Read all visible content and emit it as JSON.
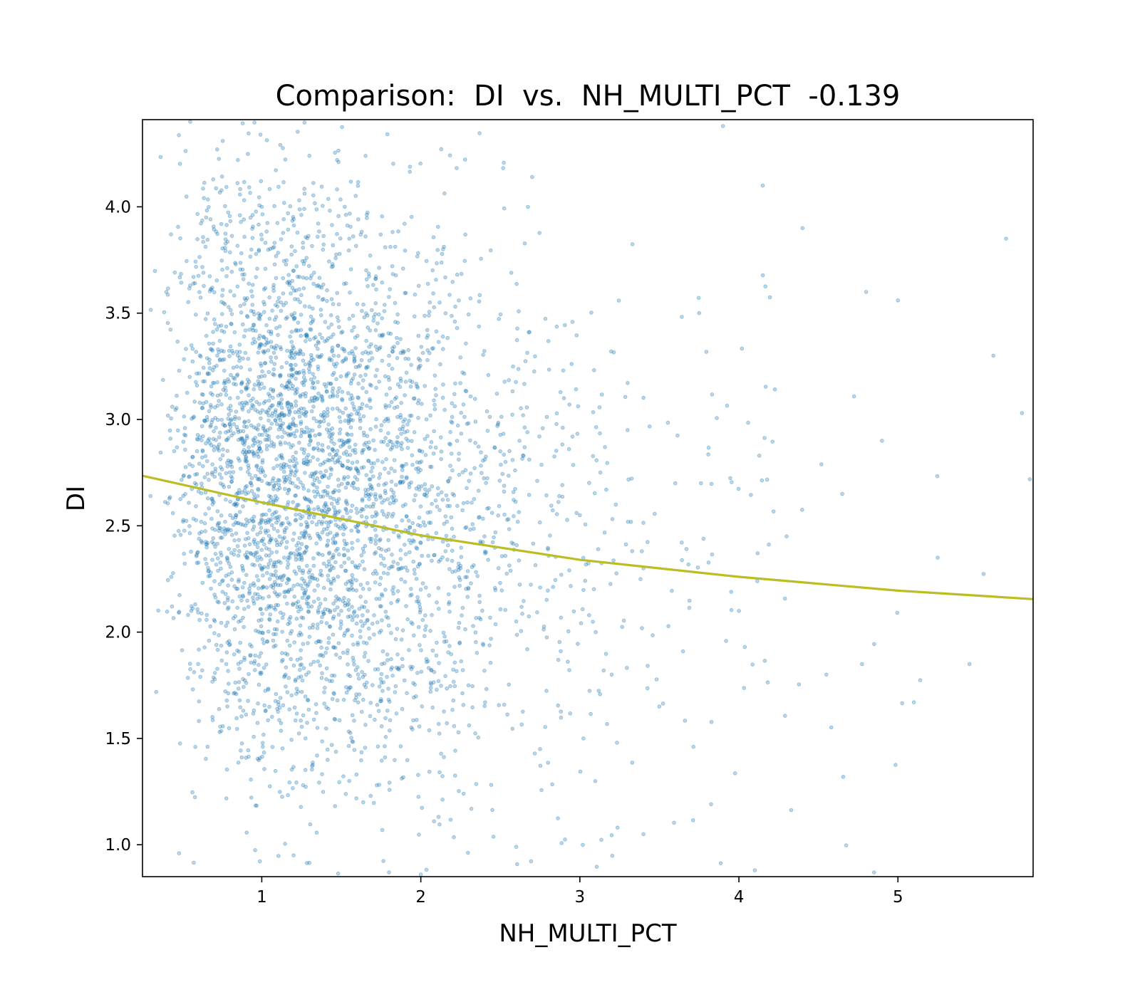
{
  "chart_data": {
    "type": "scatter",
    "title": "Comparison:  DI  vs.  NH_MULTI_PCT  -0.139",
    "xlabel": "NH_MULTI_PCT",
    "ylabel": "DI",
    "xlim": [
      0.25,
      5.85
    ],
    "ylim": [
      0.85,
      4.41
    ],
    "xticks": [
      1,
      2,
      3,
      4,
      5
    ],
    "xtick_labels": [
      "1",
      "2",
      "3",
      "4",
      "5"
    ],
    "yticks": [
      1.0,
      1.5,
      2.0,
      2.5,
      3.0,
      3.5,
      4.0
    ],
    "ytick_labels": [
      "1.0",
      "1.5",
      "2.0",
      "2.5",
      "3.0",
      "3.5",
      "4.0"
    ],
    "grid": false,
    "legend": "none",
    "correlation": -0.139,
    "scatter_color": "#1f77b4",
    "scatter_alpha": 0.3,
    "point_count_approx": 4000,
    "points_sample": [
      [
        0.55,
        4.4
      ],
      [
        0.65,
        3.95
      ],
      [
        0.72,
        3.3
      ],
      [
        0.8,
        3.1
      ],
      [
        0.85,
        4.22
      ],
      [
        0.9,
        2.65
      ],
      [
        0.95,
        2.9
      ],
      [
        1.0,
        2.55
      ],
      [
        1.05,
        2.25
      ],
      [
        1.1,
        2.05
      ],
      [
        1.15,
        1.8
      ],
      [
        1.2,
        3.7
      ],
      [
        1.25,
        2.35
      ],
      [
        1.3,
        2.95
      ],
      [
        1.35,
        1.55
      ],
      [
        1.4,
        2.6
      ],
      [
        1.45,
        3.4
      ],
      [
        1.5,
        2.1
      ],
      [
        1.55,
        1.3
      ],
      [
        1.6,
        2.8
      ],
      [
        1.7,
        2.5
      ],
      [
        1.8,
        2.3
      ],
      [
        1.9,
        3.0
      ],
      [
        2.0,
        2.2
      ],
      [
        2.1,
        1.95
      ],
      [
        2.2,
        2.65
      ],
      [
        2.3,
        1.75
      ],
      [
        2.4,
        2.45
      ],
      [
        2.5,
        2.85
      ],
      [
        2.6,
        2.05
      ],
      [
        2.7,
        4.14
      ],
      [
        2.75,
        1.45
      ],
      [
        2.9,
        3.1
      ],
      [
        3.0,
        2.55
      ],
      [
        3.1,
        2.0
      ],
      [
        3.2,
        1.8
      ],
      [
        3.3,
        2.95
      ],
      [
        3.4,
        2.3
      ],
      [
        3.5,
        1.65
      ],
      [
        3.6,
        2.7
      ],
      [
        3.75,
        3.5
      ],
      [
        3.9,
        4.38
      ],
      [
        4.0,
        2.1
      ],
      [
        4.15,
        4.1
      ],
      [
        4.3,
        2.45
      ],
      [
        4.4,
        3.9
      ],
      [
        4.55,
        1.8
      ],
      [
        4.65,
        2.65
      ],
      [
        4.8,
        3.6
      ],
      [
        4.9,
        2.9
      ],
      [
        5.0,
        3.56
      ],
      [
        5.1,
        1.67
      ],
      [
        5.25,
        2.35
      ],
      [
        5.45,
        1.85
      ],
      [
        5.6,
        3.3
      ],
      [
        5.68,
        3.85
      ],
      [
        5.78,
        3.03
      ],
      [
        0.3,
        2.64
      ],
      [
        0.4,
        3.6
      ],
      [
        0.48,
        0.96
      ],
      [
        0.6,
        1.85
      ],
      [
        1.2,
        0.95
      ],
      [
        1.8,
        0.87
      ],
      [
        2.0,
        0.86
      ],
      [
        4.1,
        0.88
      ],
      [
        4.85,
        0.87
      ],
      [
        3.4,
        1.05
      ],
      [
        2.6,
        0.99
      ],
      [
        1.0,
        4.0
      ],
      [
        1.55,
        3.85
      ]
    ],
    "fit_line": {
      "type": "line",
      "color": "#bcbd22",
      "x": [
        0.25,
        1.0,
        2.0,
        3.0,
        4.0,
        5.0,
        5.85
      ],
      "y": [
        2.735,
        2.61,
        2.455,
        2.34,
        2.26,
        2.195,
        2.155
      ]
    }
  }
}
